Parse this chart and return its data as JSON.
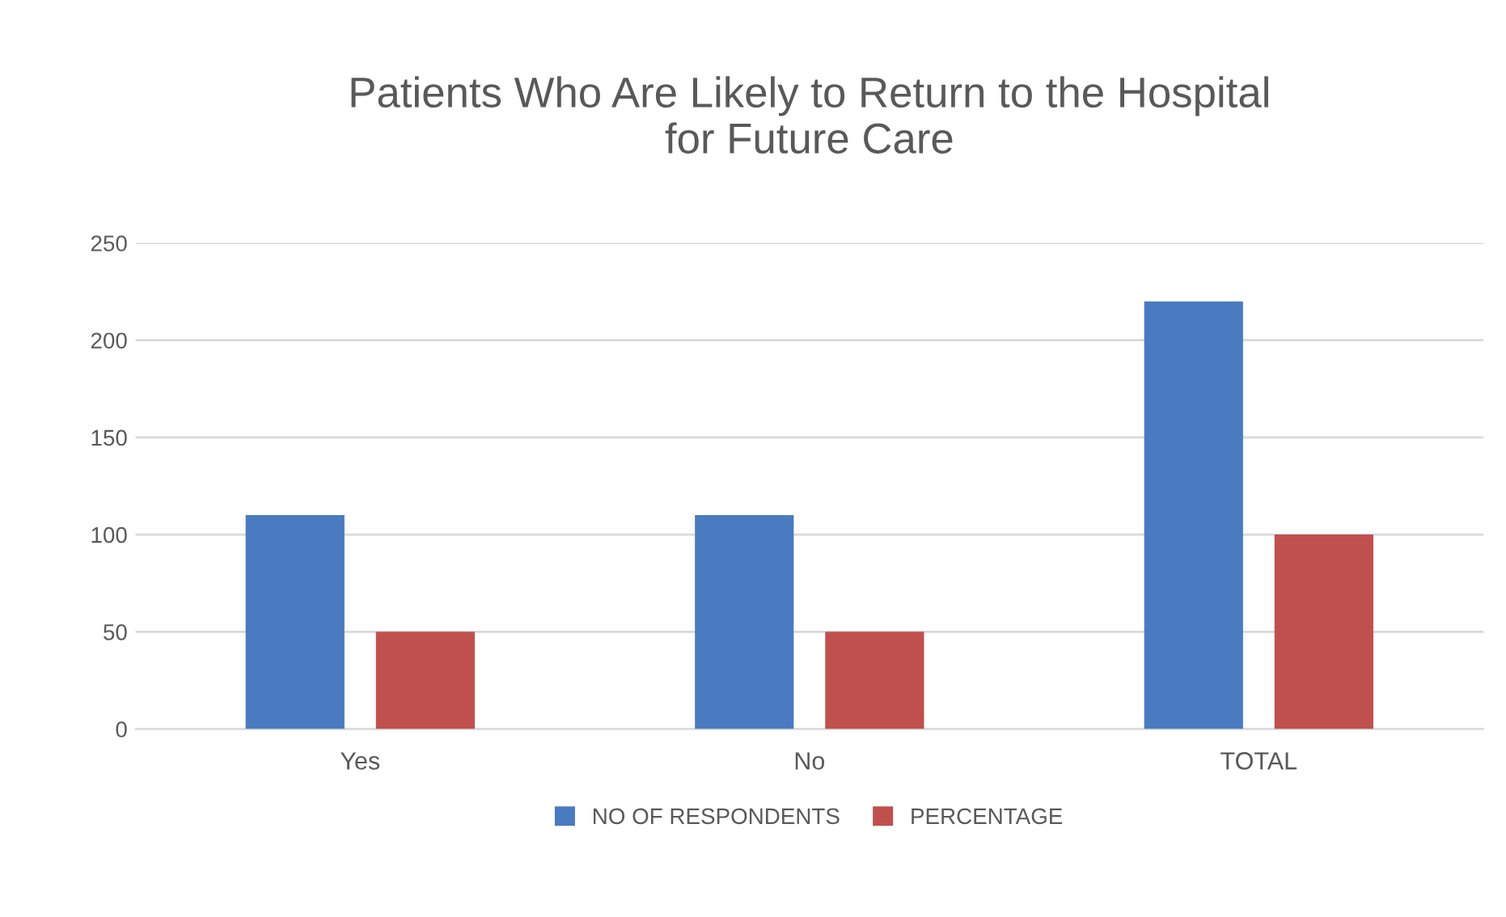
{
  "chart_data": {
    "type": "bar",
    "title": "Patients Who Are Likely to Return to the Hospital\nfor Future Care",
    "categories": [
      "Yes",
      "No",
      "TOTAL"
    ],
    "series": [
      {
        "name": "NO OF RESPONDENTS",
        "color": "#4a7bc0",
        "values": [
          110,
          110,
          220
        ]
      },
      {
        "name": "PERCENTAGE",
        "color": "#c0504d",
        "values": [
          50,
          50,
          100
        ]
      }
    ],
    "ylim": [
      0,
      250
    ],
    "yticks": [
      0,
      50,
      100,
      150,
      200,
      250
    ],
    "grid": "y",
    "legend": "bottom"
  }
}
